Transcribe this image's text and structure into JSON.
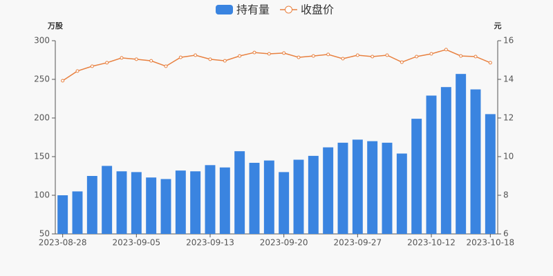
{
  "chart_data": {
    "type": "bar",
    "y_label": "万股",
    "y2_label": "元",
    "categories": [
      "2023-08-28",
      null,
      null,
      null,
      null,
      "2023-09-05",
      null,
      null,
      null,
      null,
      "2023-09-13",
      null,
      null,
      null,
      null,
      "2023-09-20",
      null,
      null,
      null,
      null,
      "2023-09-27",
      null,
      null,
      null,
      null,
      "2023-10-12",
      null,
      null,
      null,
      "2023-10-18"
    ],
    "series": [
      {
        "name": "持有量",
        "type": "bar",
        "color": "#3a84e0",
        "values": [
          100,
          105,
          125,
          138,
          131,
          130,
          123,
          121,
          132,
          131,
          139,
          136,
          157,
          142,
          145,
          130,
          146,
          151,
          162,
          168,
          172,
          170,
          168,
          154,
          199,
          229,
          240,
          257,
          237,
          205
        ]
      },
      {
        "name": "收盘价",
        "type": "line",
        "axis": "y2",
        "color": "#e8803f",
        "values": [
          13.93,
          14.43,
          14.68,
          14.86,
          15.11,
          15.04,
          14.96,
          14.68,
          15.14,
          15.25,
          15.04,
          14.96,
          15.21,
          15.39,
          15.32,
          15.36,
          15.14,
          15.21,
          15.29,
          15.07,
          15.25,
          15.18,
          15.25,
          14.89,
          15.18,
          15.32,
          15.54,
          15.21,
          15.18,
          14.86
        ]
      }
    ],
    "ylim": [
      50,
      300
    ],
    "yticks": [
      50,
      100,
      150,
      200,
      250,
      300
    ],
    "y2lim": [
      6,
      16
    ],
    "y2ticks": [
      6,
      8,
      10,
      12,
      14,
      16
    ],
    "grid": false,
    "legend": "top"
  }
}
